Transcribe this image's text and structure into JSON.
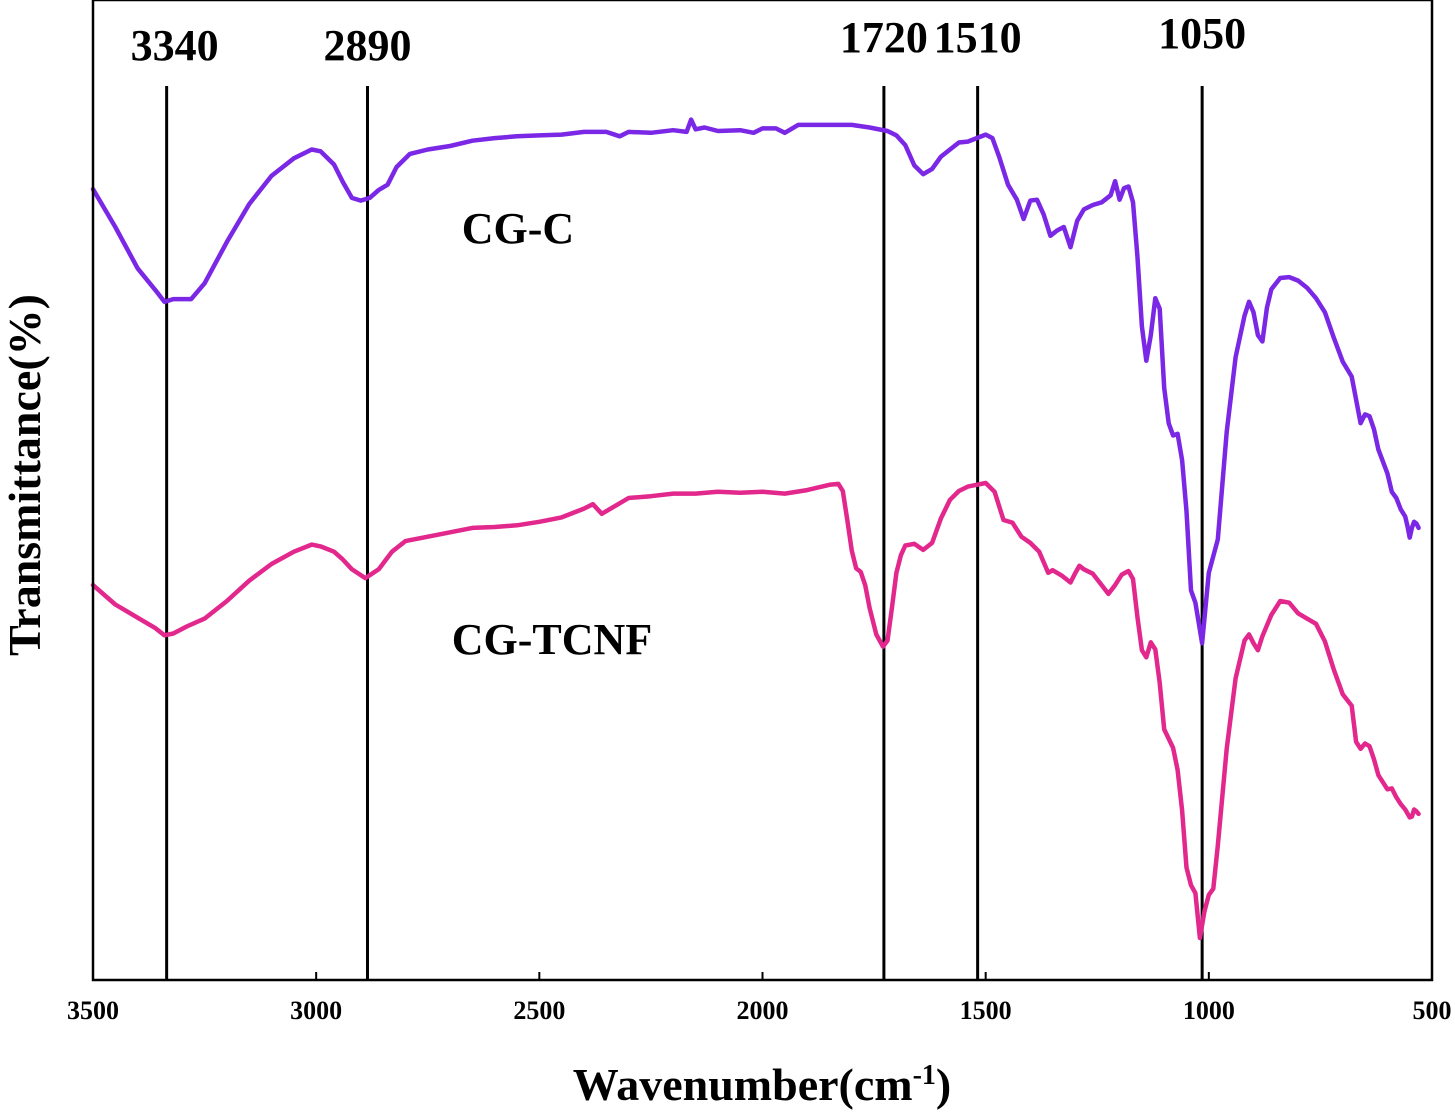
{
  "chart_data": {
    "type": "line",
    "xlabel": "Wavenumber(cm",
    "xlabel_sup": "-1",
    "xlabel_end": ")",
    "ylabel": "Transmittance(%)",
    "xlim": [
      3500,
      500
    ],
    "x_inverted": true,
    "ylim": [
      0,
      100
    ],
    "y_ticks_shown": false,
    "x_ticks": [
      3500,
      3000,
      2500,
      2000,
      1500,
      1000,
      500
    ],
    "x_tick_labels": [
      "3500",
      "3000",
      "2500",
      "2000",
      "1500",
      "1000",
      "500"
    ],
    "reference_lines": [
      {
        "x": 3340,
        "label": "3340",
        "x_pos": 3335
      },
      {
        "x": 2890,
        "label": "2890",
        "x_pos": 2885
      },
      {
        "x": 1720,
        "label": "1720",
        "x_pos": 1728
      },
      {
        "x": 1510,
        "label": "1510",
        "x_pos": 1518
      },
      {
        "x": 1050,
        "label": "1050",
        "x_pos": 1015
      }
    ],
    "series": [
      {
        "name": "CG-C",
        "color": "#7a28e6",
        "points": [
          [
            3500,
            87.6
          ],
          [
            3450,
            83.3
          ],
          [
            3400,
            78.6
          ],
          [
            3360,
            76.1
          ],
          [
            3340,
            74.8
          ],
          [
            3320,
            75.1
          ],
          [
            3280,
            75.1
          ],
          [
            3250,
            76.9
          ],
          [
            3200,
            81.6
          ],
          [
            3150,
            85.9
          ],
          [
            3100,
            89.1
          ],
          [
            3050,
            91.1
          ],
          [
            3010,
            92.1
          ],
          [
            2990,
            91.9
          ],
          [
            2960,
            90.4
          ],
          [
            2940,
            88.4
          ],
          [
            2920,
            86.6
          ],
          [
            2900,
            86.3
          ],
          [
            2880,
            86.6
          ],
          [
            2860,
            87.5
          ],
          [
            2840,
            88.1
          ],
          [
            2820,
            90.1
          ],
          [
            2790,
            91.6
          ],
          [
            2750,
            92.1
          ],
          [
            2700,
            92.5
          ],
          [
            2650,
            93.1
          ],
          [
            2600,
            93.4
          ],
          [
            2550,
            93.6
          ],
          [
            2500,
            93.7
          ],
          [
            2450,
            93.8
          ],
          [
            2400,
            94.1
          ],
          [
            2350,
            94.1
          ],
          [
            2320,
            93.6
          ],
          [
            2300,
            94.1
          ],
          [
            2250,
            94.0
          ],
          [
            2200,
            94.3
          ],
          [
            2170,
            94.1
          ],
          [
            2160,
            95.5
          ],
          [
            2150,
            94.4
          ],
          [
            2130,
            94.6
          ],
          [
            2100,
            94.2
          ],
          [
            2050,
            94.3
          ],
          [
            2020,
            94.0
          ],
          [
            2000,
            94.5
          ],
          [
            1970,
            94.5
          ],
          [
            1950,
            94.0
          ],
          [
            1920,
            94.9
          ],
          [
            1850,
            94.9
          ],
          [
            1800,
            94.9
          ],
          [
            1760,
            94.6
          ],
          [
            1720,
            94.2
          ],
          [
            1700,
            93.7
          ],
          [
            1680,
            92.6
          ],
          [
            1660,
            90.3
          ],
          [
            1640,
            89.3
          ],
          [
            1620,
            89.9
          ],
          [
            1600,
            91.3
          ],
          [
            1580,
            92.1
          ],
          [
            1560,
            92.9
          ],
          [
            1540,
            93.0
          ],
          [
            1520,
            93.4
          ],
          [
            1500,
            93.8
          ],
          [
            1485,
            93.4
          ],
          [
            1470,
            91.3
          ],
          [
            1450,
            88.1
          ],
          [
            1430,
            86.4
          ],
          [
            1415,
            84.2
          ],
          [
            1400,
            86.3
          ],
          [
            1385,
            86.4
          ],
          [
            1370,
            84.7
          ],
          [
            1355,
            82.3
          ],
          [
            1340,
            82.9
          ],
          [
            1325,
            83.3
          ],
          [
            1310,
            81.0
          ],
          [
            1295,
            84.0
          ],
          [
            1280,
            85.3
          ],
          [
            1260,
            85.8
          ],
          [
            1240,
            86.1
          ],
          [
            1220,
            86.9
          ],
          [
            1210,
            88.5
          ],
          [
            1200,
            86.4
          ],
          [
            1190,
            87.7
          ],
          [
            1180,
            87.9
          ],
          [
            1170,
            86.1
          ],
          [
            1160,
            80.0
          ],
          [
            1150,
            72.0
          ],
          [
            1140,
            68.1
          ],
          [
            1130,
            71.0
          ],
          [
            1120,
            75.2
          ],
          [
            1110,
            74.0
          ],
          [
            1100,
            65.0
          ],
          [
            1090,
            61.0
          ],
          [
            1080,
            59.6
          ],
          [
            1070,
            59.8
          ],
          [
            1060,
            56.8
          ],
          [
            1050,
            51.0
          ],
          [
            1040,
            42.0
          ],
          [
            1030,
            40.6
          ],
          [
            1015,
            36.0
          ],
          [
            1000,
            44.0
          ],
          [
            980,
            47.8
          ],
          [
            960,
            60.0
          ],
          [
            940,
            68.5
          ],
          [
            920,
            73.2
          ],
          [
            910,
            74.8
          ],
          [
            900,
            73.6
          ],
          [
            890,
            71.0
          ],
          [
            880,
            70.3
          ],
          [
            870,
            74.1
          ],
          [
            860,
            76.2
          ],
          [
            840,
            77.5
          ],
          [
            820,
            77.6
          ],
          [
            800,
            77.2
          ],
          [
            780,
            76.4
          ],
          [
            760,
            75.2
          ],
          [
            740,
            73.6
          ],
          [
            720,
            70.7
          ],
          [
            700,
            68.0
          ],
          [
            680,
            66.3
          ],
          [
            660,
            61.0
          ],
          [
            650,
            62.0
          ],
          [
            640,
            61.8
          ],
          [
            630,
            60.3
          ],
          [
            620,
            58.0
          ],
          [
            600,
            55.3
          ],
          [
            590,
            53.2
          ],
          [
            580,
            52.5
          ],
          [
            570,
            51.2
          ],
          [
            560,
            50.4
          ],
          [
            555,
            49.3
          ],
          [
            550,
            48.0
          ],
          [
            545,
            49.1
          ],
          [
            540,
            49.8
          ],
          [
            535,
            49.6
          ],
          [
            530,
            49.1
          ]
        ]
      },
      {
        "name": "CG-TCNF",
        "color": "#e2288d",
        "points": [
          [
            3500,
            42.6
          ],
          [
            3450,
            40.4
          ],
          [
            3400,
            38.9
          ],
          [
            3360,
            37.7
          ],
          [
            3340,
            36.9
          ],
          [
            3320,
            37.1
          ],
          [
            3290,
            37.9
          ],
          [
            3250,
            38.8
          ],
          [
            3200,
            40.8
          ],
          [
            3150,
            43.1
          ],
          [
            3100,
            45.0
          ],
          [
            3050,
            46.4
          ],
          [
            3010,
            47.2
          ],
          [
            2990,
            47.0
          ],
          [
            2960,
            46.4
          ],
          [
            2940,
            45.5
          ],
          [
            2920,
            44.4
          ],
          [
            2890,
            43.4
          ],
          [
            2860,
            44.4
          ],
          [
            2830,
            46.4
          ],
          [
            2800,
            47.6
          ],
          [
            2750,
            48.1
          ],
          [
            2700,
            48.6
          ],
          [
            2650,
            49.1
          ],
          [
            2600,
            49.2
          ],
          [
            2550,
            49.4
          ],
          [
            2500,
            49.8
          ],
          [
            2450,
            50.3
          ],
          [
            2400,
            51.3
          ],
          [
            2380,
            51.8
          ],
          [
            2360,
            50.7
          ],
          [
            2340,
            51.3
          ],
          [
            2300,
            52.5
          ],
          [
            2250,
            52.7
          ],
          [
            2200,
            53.0
          ],
          [
            2150,
            53.0
          ],
          [
            2100,
            53.2
          ],
          [
            2050,
            53.1
          ],
          [
            2000,
            53.2
          ],
          [
            1950,
            53.0
          ],
          [
            1900,
            53.4
          ],
          [
            1850,
            54.0
          ],
          [
            1830,
            54.1
          ],
          [
            1820,
            53.3
          ],
          [
            1810,
            50.0
          ],
          [
            1800,
            46.5
          ],
          [
            1790,
            44.5
          ],
          [
            1780,
            44.1
          ],
          [
            1770,
            42.6
          ],
          [
            1760,
            40.0
          ],
          [
            1745,
            37.0
          ],
          [
            1730,
            35.6
          ],
          [
            1720,
            36.3
          ],
          [
            1710,
            40.0
          ],
          [
            1700,
            44.0
          ],
          [
            1690,
            46.0
          ],
          [
            1680,
            47.1
          ],
          [
            1660,
            47.3
          ],
          [
            1640,
            46.6
          ],
          [
            1620,
            47.4
          ],
          [
            1600,
            50.2
          ],
          [
            1580,
            52.3
          ],
          [
            1560,
            53.3
          ],
          [
            1540,
            53.8
          ],
          [
            1520,
            54.0
          ],
          [
            1500,
            54.2
          ],
          [
            1480,
            53.2
          ],
          [
            1460,
            50.0
          ],
          [
            1440,
            49.7
          ],
          [
            1420,
            48.1
          ],
          [
            1400,
            47.4
          ],
          [
            1380,
            46.4
          ],
          [
            1360,
            44.0
          ],
          [
            1350,
            44.3
          ],
          [
            1330,
            43.7
          ],
          [
            1310,
            42.9
          ],
          [
            1300,
            43.9
          ],
          [
            1290,
            44.8
          ],
          [
            1280,
            44.4
          ],
          [
            1260,
            43.9
          ],
          [
            1240,
            42.6
          ],
          [
            1225,
            41.6
          ],
          [
            1210,
            42.6
          ],
          [
            1195,
            43.8
          ],
          [
            1180,
            44.2
          ],
          [
            1170,
            43.3
          ],
          [
            1160,
            39.0
          ],
          [
            1150,
            35.2
          ],
          [
            1140,
            34.4
          ],
          [
            1130,
            36.1
          ],
          [
            1120,
            35.3
          ],
          [
            1110,
            31.5
          ],
          [
            1100,
            26.2
          ],
          [
            1080,
            24.1
          ],
          [
            1070,
            21.6
          ],
          [
            1060,
            17.0
          ],
          [
            1050,
            10.5
          ],
          [
            1040,
            8.5
          ],
          [
            1030,
            7.6
          ],
          [
            1020,
            2.5
          ],
          [
            1010,
            5.5
          ],
          [
            1000,
            7.4
          ],
          [
            990,
            8.1
          ],
          [
            980,
            13.0
          ],
          [
            960,
            24.0
          ],
          [
            940,
            32.0
          ],
          [
            920,
            36.3
          ],
          [
            910,
            37.0
          ],
          [
            900,
            36.0
          ],
          [
            890,
            35.2
          ],
          [
            880,
            36.8
          ],
          [
            860,
            39.2
          ],
          [
            840,
            40.8
          ],
          [
            820,
            40.6
          ],
          [
            800,
            39.4
          ],
          [
            780,
            38.8
          ],
          [
            760,
            38.2
          ],
          [
            740,
            36.2
          ],
          [
            720,
            33.0
          ],
          [
            700,
            30.2
          ],
          [
            680,
            28.9
          ],
          [
            670,
            24.8
          ],
          [
            660,
            24.0
          ],
          [
            650,
            24.6
          ],
          [
            640,
            24.3
          ],
          [
            630,
            22.8
          ],
          [
            620,
            21.0
          ],
          [
            600,
            19.4
          ],
          [
            590,
            19.5
          ],
          [
            580,
            18.5
          ],
          [
            570,
            17.7
          ],
          [
            560,
            17.1
          ],
          [
            550,
            16.2
          ],
          [
            545,
            16.3
          ],
          [
            540,
            17.1
          ],
          [
            535,
            16.9
          ],
          [
            530,
            16.6
          ]
        ]
      }
    ],
    "annotations": [
      {
        "text": "CG-C",
        "series": 0
      },
      {
        "text": "CG-TCNF",
        "series": 1
      }
    ]
  }
}
